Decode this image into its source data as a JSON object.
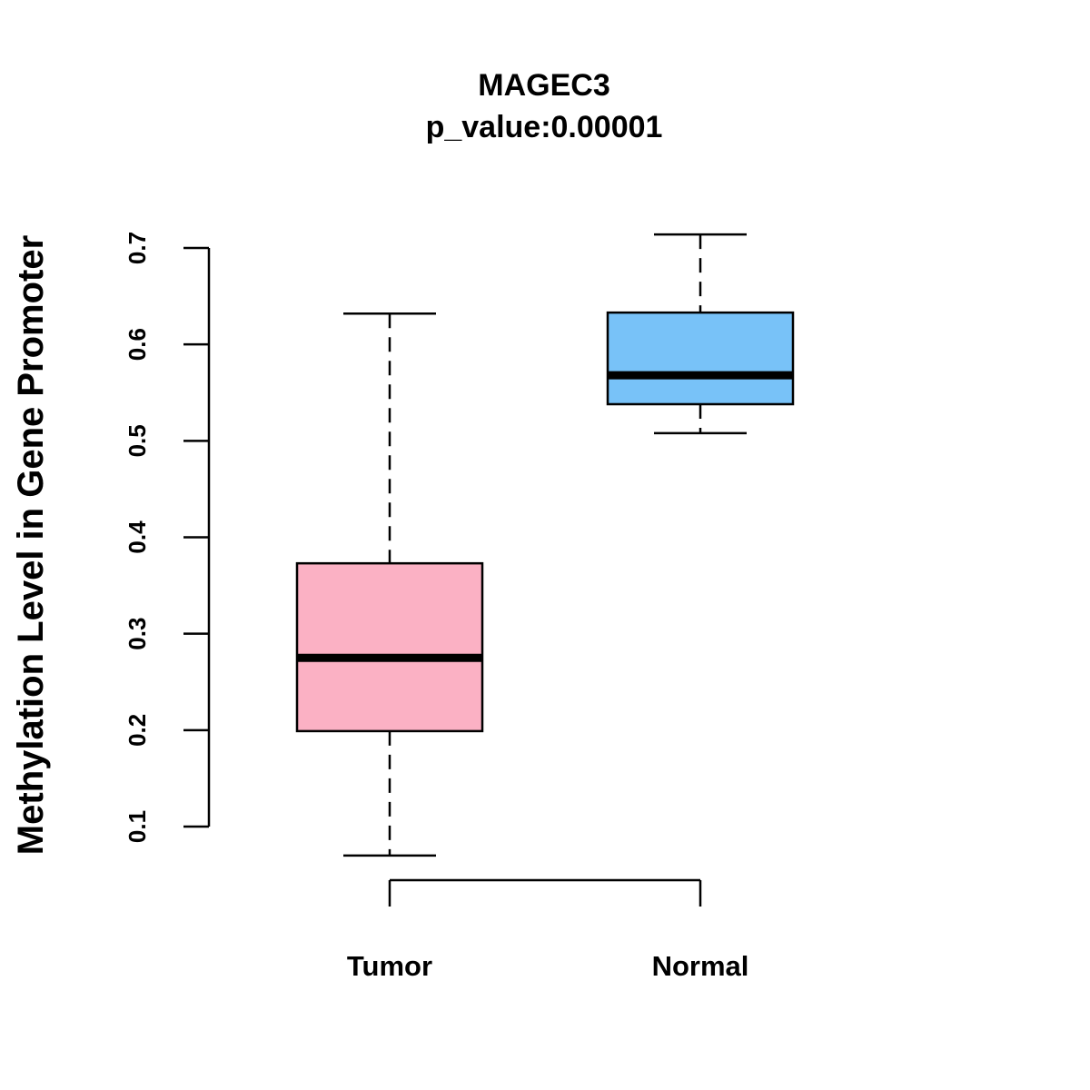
{
  "chart_data": {
    "type": "boxplot",
    "title": "MAGEC3",
    "subtitle": "p_value:0.00001",
    "xlabel": "",
    "ylabel": "Methylation Level in Gene Promoter",
    "ylim": [
      0.1,
      0.7
    ],
    "yticks": [
      "0.1",
      "0.2",
      "0.3",
      "0.4",
      "0.5",
      "0.6",
      "0.7"
    ],
    "grid": false,
    "categories": [
      "Tumor",
      "Normal"
    ],
    "boxes": [
      {
        "name": "Tumor",
        "min": 0.07,
        "q1": 0.199,
        "median": 0.275,
        "q3": 0.373,
        "max": 0.632,
        "color": "#FBB1C4"
      },
      {
        "name": "Normal",
        "min": 0.508,
        "q1": 0.538,
        "median": 0.568,
        "q3": 0.633,
        "max": 0.714,
        "color": "#78C2F8"
      }
    ]
  }
}
